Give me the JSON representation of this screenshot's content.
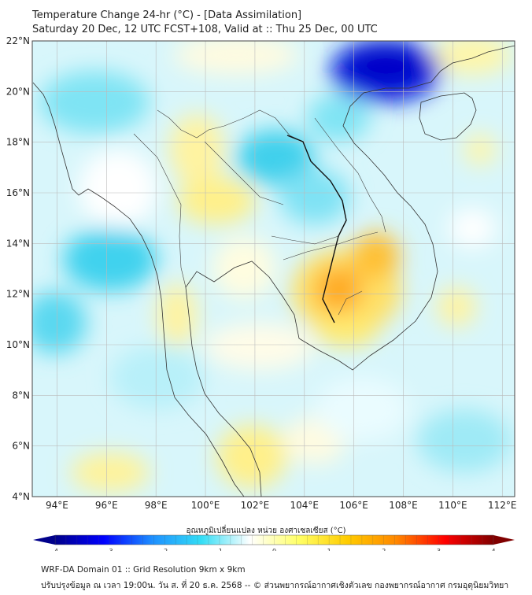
{
  "header": {
    "title": "Temperature Change 24-hr (°C) - [Data Assimilation]",
    "subtitle": "Saturday 20 Dec, 12 UTC FCST+108, Valid at :: Thu 25 Dec, 00 UTC"
  },
  "map": {
    "lat_labels": [
      "22°N",
      "20°N",
      "18°N",
      "16°N",
      "14°N",
      "12°N",
      "10°N",
      "8°N",
      "6°N",
      "4°N"
    ],
    "lon_labels": [
      "94°E",
      "96°E",
      "98°E",
      "100°E",
      "102°E",
      "104°E",
      "106°E",
      "108°E",
      "110°E",
      "112°E"
    ],
    "lat_range": [
      4,
      22
    ],
    "lon_range": [
      93,
      112.5
    ],
    "features": [
      {
        "name": "cold-anomaly-gulf-of-tonkin",
        "lon": 107.9,
        "lat": 21.3,
        "value": -3.5
      },
      {
        "name": "warm-anomaly-cambodia",
        "lon": 105.2,
        "lat": 12.1,
        "value": 2.2
      },
      {
        "name": "warm-anomaly-east-cambodia",
        "lon": 107.1,
        "lat": 13.5,
        "value": 1.6
      },
      {
        "name": "cool-anomaly-northeast-thailand",
        "lon": 103.2,
        "lat": 17.3,
        "value": -1.3
      },
      {
        "name": "warm-anomaly-central-thailand",
        "lon": 100.2,
        "lat": 15.8,
        "value": 0.8
      }
    ]
  },
  "colorbar": {
    "label": "อุณหภูมิเปลี่ยนแปลง หน่วย องศาเซลเซียส (°C)",
    "ticks": [
      "-4",
      "-3",
      "-2",
      "-1",
      "0",
      "1",
      "2",
      "3",
      "4"
    ],
    "range": [
      -4,
      4
    ],
    "colors": [
      "#00008b",
      "#0000ff",
      "#1e90ff",
      "#33ddf5",
      "#ffffff",
      "#ffff66",
      "#ffcc00",
      "#ff8800",
      "#ff0000",
      "#800000"
    ]
  },
  "footer": {
    "line1": "WRF-DA Domain 01 :: Grid Resolution 9km x 9km",
    "line2": "ปรับปรุงข้อมูล ณ เวลา 19:00น. วัน ส. ที่ 20 ธ.ค. 2568 -- © ส่วนพยากรณ์อากาศเชิงตัวเลข กองพยากรณ์อากาศ กรมอุตุนิยมวิทยา"
  }
}
